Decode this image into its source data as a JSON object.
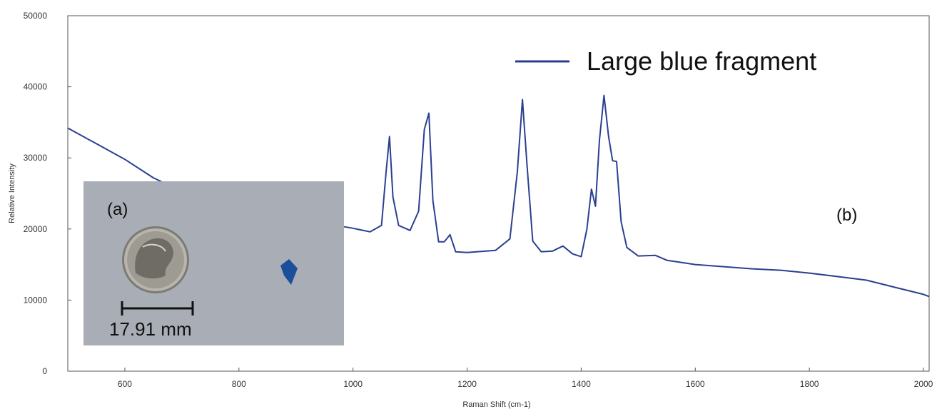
{
  "chart_data": {
    "type": "line",
    "xlabel": "Raman Shift (cm-1)",
    "ylabel": "Relative Intensity",
    "xlim": [
      500,
      2010
    ],
    "ylim": [
      0,
      50000
    ],
    "xticks": [
      600,
      800,
      1000,
      1200,
      1400,
      1600,
      1800,
      2000
    ],
    "yticks": [
      0,
      10000,
      20000,
      30000,
      40000,
      50000
    ],
    "grid": false,
    "legend_position": "top-right",
    "series": [
      {
        "name": "Large blue fragment",
        "color": "#2b3f91",
        "x": [
          500,
          550,
          600,
          650,
          700,
          750,
          800,
          850,
          900,
          950,
          1000,
          1030,
          1050,
          1058,
          1064,
          1070,
          1080,
          1100,
          1115,
          1125,
          1133,
          1140,
          1150,
          1160,
          1170,
          1180,
          1200,
          1250,
          1275,
          1288,
          1297,
          1305,
          1315,
          1330,
          1350,
          1368,
          1385,
          1400,
          1410,
          1418,
          1425,
          1432,
          1440,
          1448,
          1455,
          1462,
          1470,
          1480,
          1500,
          1530,
          1550,
          1600,
          1650,
          1700,
          1750,
          1800,
          1850,
          1900,
          1950,
          2000,
          2010
        ],
        "y": [
          34200,
          32000,
          29800,
          27200,
          25300,
          23800,
          22600,
          21900,
          21400,
          20800,
          20100,
          19600,
          20500,
          28000,
          33000,
          24500,
          20500,
          19800,
          22500,
          34000,
          36300,
          24000,
          18200,
          18200,
          19200,
          16800,
          16700,
          17000,
          18600,
          28000,
          38200,
          29000,
          18300,
          16800,
          16900,
          17600,
          16500,
          16100,
          20000,
          25600,
          23200,
          32500,
          38800,
          33000,
          29600,
          29500,
          21000,
          17400,
          16200,
          16300,
          15600,
          15000,
          14700,
          14400,
          14200,
          13800,
          13300,
          12800,
          11800,
          10800,
          10500
        ]
      }
    ]
  },
  "inset": {
    "panel_label": "(a)",
    "scale_label": "17.91 mm",
    "background_color": "#a9adb6",
    "fragment_color": "#1b4f9a"
  },
  "panel_b_label": "(b)",
  "colors": {
    "axis": "#444444",
    "line": "#2b3f91"
  }
}
